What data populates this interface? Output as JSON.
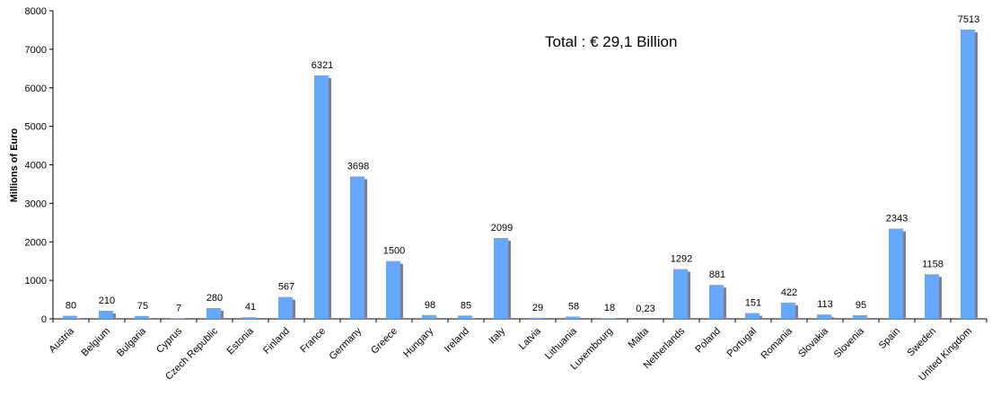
{
  "chart_data": {
    "type": "bar",
    "title": "",
    "xlabel": "",
    "ylabel": "Millions of Euro",
    "ylim": [
      0,
      8000
    ],
    "yticks": [
      "0",
      "1000",
      "2000",
      "3000",
      "4000",
      "5000",
      "6000",
      "7000",
      "8000"
    ],
    "annotation": "Total : € 29,1 Billion",
    "grid": false,
    "legend": "none",
    "bar_color": "#66a8ff",
    "shadow_color": "#808080",
    "categories": [
      "Austria",
      "Belgium",
      "Bulgaria",
      "Cyprus",
      "Czech Republic",
      "Estonia",
      "Finland",
      "France",
      "Germany",
      "Greece",
      "Hungary",
      "Ireland",
      "Italy",
      "Latvia",
      "Lithuania",
      "Luxembourg",
      "Malta",
      "Netherlands",
      "Poland",
      "Portugal",
      "Romania",
      "Slovakia",
      "Slovenia",
      "Spain",
      "Sweden",
      "United Kingdom"
    ],
    "values": [
      80,
      210,
      75,
      7,
      280,
      41,
      567,
      6321,
      3698,
      1500,
      98,
      85,
      2099,
      29,
      58,
      18,
      0.23,
      1292,
      881,
      151,
      422,
      113,
      95,
      2343,
      1158,
      7513
    ],
    "value_labels": [
      "80",
      "210",
      "75",
      "7",
      "280",
      "41",
      "567",
      "6321",
      "3698",
      "1500",
      "98",
      "85",
      "2099",
      "29",
      "58",
      "18",
      "0,23",
      "1292",
      "881",
      "151",
      "422",
      "113",
      "95",
      "2343",
      "1158",
      "7513"
    ]
  }
}
